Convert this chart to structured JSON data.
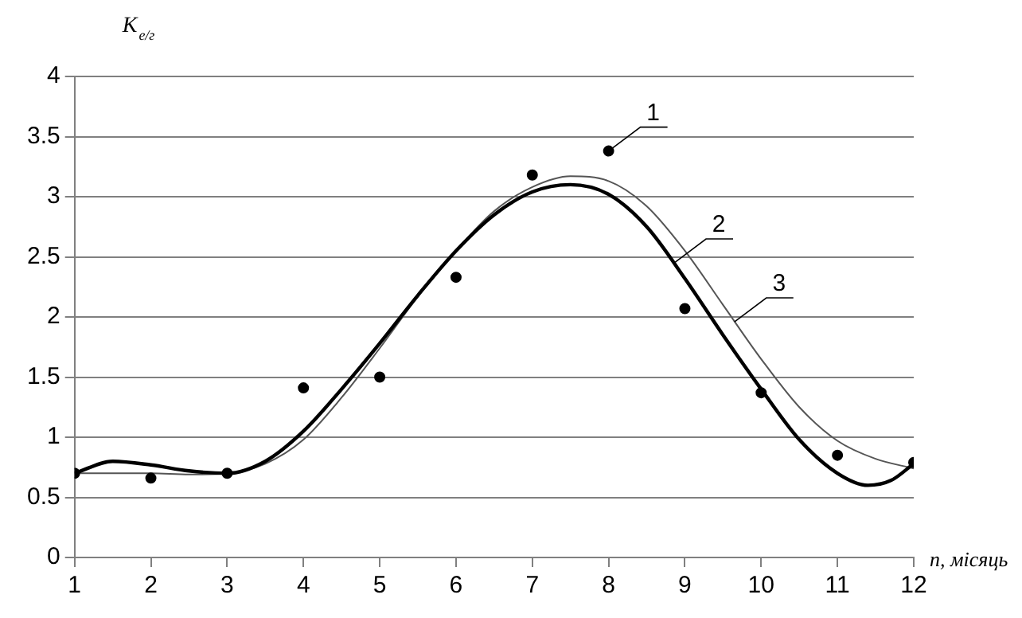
{
  "chart_data": {
    "type": "line",
    "ylabel": "K$_{е/г}$",
    "xlabel": "n, місяць",
    "xlim": [
      1,
      12
    ],
    "xticks": [
      1,
      2,
      3,
      4,
      5,
      6,
      7,
      8,
      9,
      10,
      11,
      12
    ],
    "ylim": [
      0,
      4
    ],
    "yticks": [
      0,
      0.5,
      1,
      1.5,
      2,
      2.5,
      3,
      3.5,
      4
    ],
    "grid": "y",
    "legend": false,
    "series": [
      {
        "type": "scatter",
        "marker": "circle",
        "color": "#000000",
        "x": [
          1,
          2,
          3,
          4,
          5,
          6,
          7,
          8,
          9,
          10,
          11,
          12
        ],
        "values": [
          0.7,
          0.66,
          0.7,
          1.41,
          1.5,
          2.33,
          3.18,
          3.38,
          2.07,
          1.37,
          0.85,
          0.79
        ]
      },
      {
        "marker": "none",
        "color": "#000000",
        "x": [
          1,
          1.5,
          2,
          2.5,
          3,
          3.5,
          4,
          4.5,
          5,
          5.5,
          6,
          6.5,
          7,
          7.5,
          8,
          8.5,
          9,
          9.5,
          10,
          10.5,
          11,
          11.4,
          11.7,
          12
        ],
        "values": [
          0.7,
          0.8,
          0.77,
          0.72,
          0.7,
          0.8,
          1.05,
          1.4,
          1.78,
          2.18,
          2.55,
          2.85,
          3.04,
          3.1,
          3.02,
          2.75,
          2.32,
          1.85,
          1.4,
          0.98,
          0.7,
          0.6,
          0.64,
          0.78
        ]
      },
      {
        "marker": "none",
        "color": "#555555",
        "x": [
          1,
          1.5,
          2,
          2.5,
          3,
          3.5,
          4,
          4.5,
          5,
          5.5,
          6,
          6.5,
          7,
          7.5,
          8,
          8.5,
          9,
          9.5,
          10,
          10.5,
          11,
          11.5,
          12
        ],
        "values": [
          0.7,
          0.7,
          0.7,
          0.69,
          0.7,
          0.78,
          0.98,
          1.33,
          1.74,
          2.17,
          2.55,
          2.88,
          3.08,
          3.17,
          3.13,
          2.92,
          2.55,
          2.1,
          1.65,
          1.25,
          0.97,
          0.82,
          0.74
        ]
      }
    ],
    "annotations": [
      {
        "text": "1",
        "x": 8,
        "y": 3.38
      },
      {
        "text": "2",
        "x": 8.86,
        "y": 2.45
      },
      {
        "text": "3",
        "x": 9.65,
        "y": 1.96
      }
    ]
  }
}
